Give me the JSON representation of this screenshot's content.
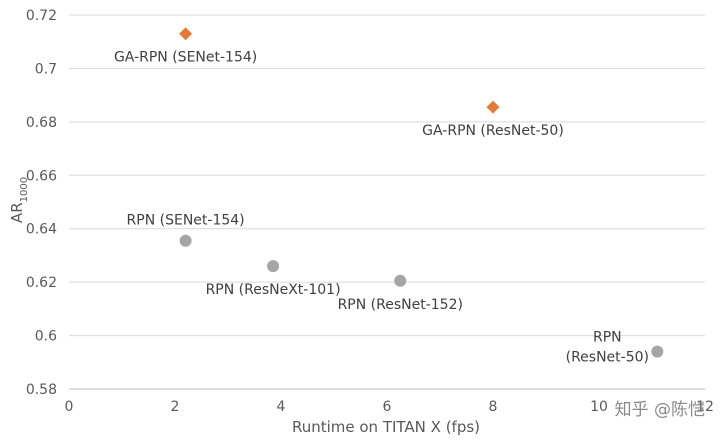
{
  "chart_data": {
    "type": "scatter",
    "title": "",
    "xlabel": "Runtime on TITAN X (fps)",
    "ylabel_main": "AR",
    "ylabel_sub": "1000",
    "xlim": [
      0,
      12
    ],
    "ylim": [
      0.58,
      0.72
    ],
    "xticks": [
      "0",
      "2",
      "4",
      "6",
      "8",
      "10",
      "12"
    ],
    "yticks": [
      "0.58",
      "0.6",
      "0.62",
      "0.64",
      "0.66",
      "0.68",
      "0.7",
      "0.72"
    ],
    "grid": "horizontal",
    "series": [
      {
        "name": "GA-RPN",
        "marker": "diamond",
        "color": "#E07B39",
        "points": [
          {
            "x": 2.2,
            "y": 0.713,
            "label": [
              "GA-RPN (SENet-154)"
            ],
            "label_pos": "below"
          },
          {
            "x": 8.0,
            "y": 0.6855,
            "label": [
              "GA-RPN (ResNet-50)"
            ],
            "label_pos": "below"
          }
        ]
      },
      {
        "name": "RPN",
        "marker": "circle",
        "color": "#A5A5A5",
        "points": [
          {
            "x": 2.2,
            "y": 0.6355,
            "label": [
              "RPN (SENet-154)"
            ],
            "label_pos": "above"
          },
          {
            "x": 3.85,
            "y": 0.626,
            "label": [
              "RPN (ResNeXt-101)"
            ],
            "label_pos": "below"
          },
          {
            "x": 6.25,
            "y": 0.6205,
            "label": [
              "RPN (ResNet-152)"
            ],
            "label_pos": "below"
          },
          {
            "x": 11.1,
            "y": 0.594,
            "label": [
              "RPN",
              "(ResNet-50)"
            ],
            "label_pos": "left"
          }
        ]
      }
    ]
  },
  "watermark": "知乎 @陈恺"
}
